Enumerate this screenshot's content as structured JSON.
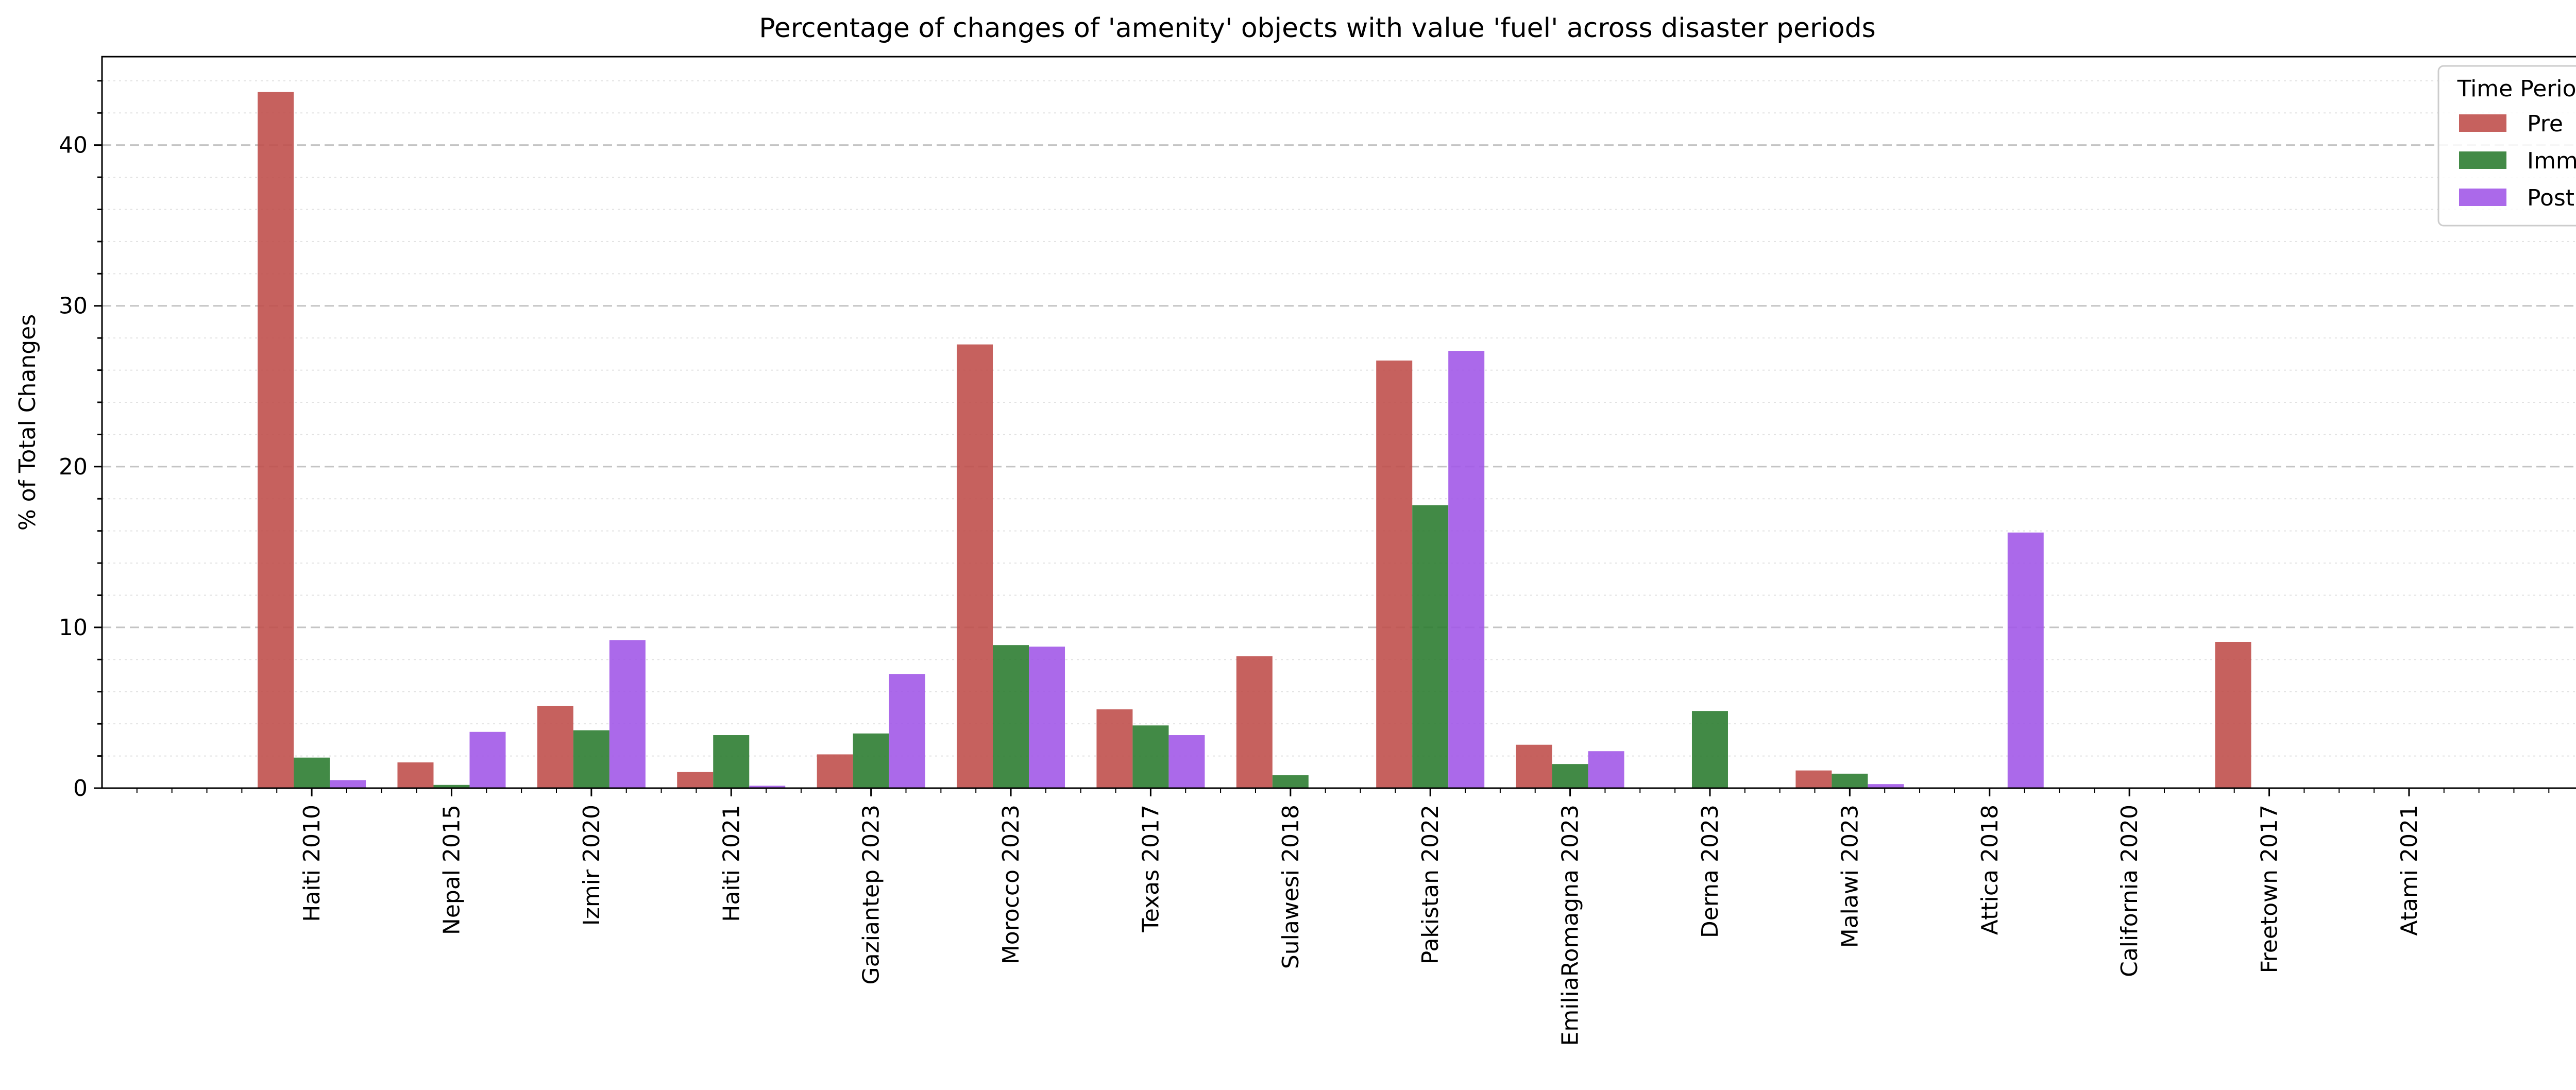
{
  "chart_data": {
    "type": "bar",
    "title": "Percentage of changes of 'amenity' objects with value 'fuel' across disaster periods",
    "xlabel": "",
    "ylabel": "% of Total Changes",
    "ylim": [
      0,
      45.5
    ],
    "yticks": [
      0,
      10,
      20,
      30,
      40
    ],
    "grid": "horizontal, dashed major / dotted minor",
    "legend": {
      "title": "Time Period",
      "placement": "top-right"
    },
    "categories": [
      "Haiti 2010",
      "Nepal 2015",
      "Izmir 2020",
      "Haiti 2021",
      "Gaziantep 2023",
      "Morocco 2023",
      "Texas 2017",
      "Sulawesi 2018",
      "Pakistan 2022",
      "EmiliaRomagna 2023",
      "Derna 2023",
      "Malawi 2023",
      "Attica 2018",
      "California 2020",
      "Freetown 2017",
      "Atami 2021"
    ],
    "series": [
      {
        "name": "Pre",
        "color": "#c0504d",
        "values": [
          43.3,
          1.6,
          5.1,
          1.0,
          2.1,
          27.6,
          4.9,
          8.2,
          26.6,
          2.7,
          0,
          1.1,
          0,
          0,
          9.1,
          0
        ]
      },
      {
        "name": "Imm",
        "color": "#2e7d32",
        "values": [
          1.9,
          0.2,
          3.6,
          3.3,
          3.4,
          8.9,
          3.9,
          0.8,
          17.6,
          1.5,
          4.8,
          0.9,
          0,
          0,
          0,
          0
        ]
      },
      {
        "name": "Post",
        "color": "#a259e8",
        "values": [
          0.5,
          3.5,
          9.2,
          0.15,
          7.1,
          8.8,
          3.3,
          0,
          27.2,
          2.3,
          0,
          0.25,
          15.9,
          0,
          0,
          0
        ]
      }
    ]
  }
}
